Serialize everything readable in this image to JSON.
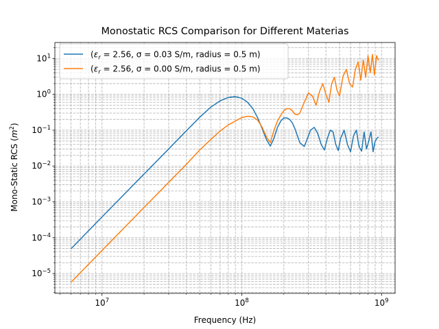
{
  "chart_data": {
    "type": "line",
    "title": "Monostatic RCS Comparison for Different Materias",
    "xlabel": "Frequency (Hz)",
    "ylabel": "Mono-Static RCS (m²)",
    "xscale": "log",
    "yscale": "log",
    "xlim": [
      4600000.0,
      1250000000.0
    ],
    "ylim": [
      2.8e-06,
      28
    ],
    "grid": "both (major and minor), dashed",
    "legend_position": "top-left",
    "x_tick_labels": [
      {
        "value": 10000000.0,
        "base": "10",
        "exp": "7"
      },
      {
        "value": 100000000.0,
        "base": "10",
        "exp": "8"
      },
      {
        "value": 1000000000.0,
        "base": "10",
        "exp": "9"
      }
    ],
    "y_tick_labels": [
      {
        "value": 1e-05,
        "base": "10",
        "exp": "−5"
      },
      {
        "value": 0.0001,
        "base": "10",
        "exp": "−4"
      },
      {
        "value": 0.001,
        "base": "10",
        "exp": "−3"
      },
      {
        "value": 0.01,
        "base": "10",
        "exp": "−2"
      },
      {
        "value": 0.1,
        "base": "10",
        "exp": "−1"
      },
      {
        "value": 1,
        "base": "10",
        "exp": "0"
      },
      {
        "value": 10,
        "base": "10",
        "exp": "1"
      }
    ],
    "series": [
      {
        "name": "(εr = 2.56, σ = 0.03 S/m, radius = 0.5 m)",
        "legend_eps": "ε",
        "legend_eps_sub": "r",
        "legend_rest": " = 2.56, σ = 0.03 S/m, radius = 0.5 m)",
        "color": "#1f77b4",
        "x": [
          6000000.0,
          10000000.0,
          20000000.0,
          30000000.0,
          40000000.0,
          50000000.0,
          60000000.0,
          70000000.0,
          80000000.0,
          90000000.0,
          100000000.0,
          110000000.0,
          120000000.0,
          130000000.0,
          140000000.0,
          150000000.0,
          160000000.0,
          170000000.0,
          180000000.0,
          190000000.0,
          200000000.0,
          210000000.0,
          220000000.0,
          230000000.0,
          240000000.0,
          250000000.0,
          260000000.0,
          280000000.0,
          300000000.0,
          310000000.0,
          330000000.0,
          350000000.0,
          370000000.0,
          390000000.0,
          410000000.0,
          430000000.0,
          450000000.0,
          470000000.0,
          490000000.0,
          510000000.0,
          540000000.0,
          570000000.0,
          600000000.0,
          630000000.0,
          660000000.0,
          690000000.0,
          720000000.0,
          750000000.0,
          780000000.0,
          810000000.0,
          840000000.0,
          870000000.0,
          900000000.0,
          930000000.0,
          950000000.0
        ],
        "values": [
          4.9e-05,
          0.00038,
          0.006,
          0.03,
          0.095,
          0.23,
          0.44,
          0.66,
          0.82,
          0.86,
          0.78,
          0.6,
          0.4,
          0.22,
          0.11,
          0.055,
          0.036,
          0.06,
          0.12,
          0.18,
          0.22,
          0.22,
          0.2,
          0.16,
          0.11,
          0.07,
          0.045,
          0.035,
          0.07,
          0.1,
          0.12,
          0.08,
          0.04,
          0.028,
          0.06,
          0.1,
          0.09,
          0.04,
          0.027,
          0.06,
          0.1,
          0.04,
          0.025,
          0.07,
          0.1,
          0.035,
          0.026,
          0.09,
          0.03,
          0.05,
          0.09,
          0.025,
          0.05,
          0.06,
          0.065
        ]
      },
      {
        "name": "(εr = 2.56, σ = 0.00 S/m, radius = 0.5 m)",
        "legend_eps": "ε",
        "legend_eps_sub": "r",
        "legend_rest": " = 2.56, σ = 0.00 S/m, radius = 0.5 m)",
        "color": "#ff7f0e",
        "x": [
          6000000.0,
          10000000.0,
          20000000.0,
          30000000.0,
          40000000.0,
          50000000.0,
          60000000.0,
          70000000.0,
          80000000.0,
          90000000.0,
          100000000.0,
          110000000.0,
          120000000.0,
          130000000.0,
          140000000.0,
          150000000.0,
          160000000.0,
          170000000.0,
          180000000.0,
          190000000.0,
          200000000.0,
          210000000.0,
          220000000.0,
          230000000.0,
          240000000.0,
          250000000.0,
          260000000.0,
          280000000.0,
          300000000.0,
          320000000.0,
          340000000.0,
          360000000.0,
          380000000.0,
          400000000.0,
          420000000.0,
          440000000.0,
          460000000.0,
          480000000.0,
          500000000.0,
          530000000.0,
          560000000.0,
          590000000.0,
          620000000.0,
          650000000.0,
          680000000.0,
          710000000.0,
          740000000.0,
          770000000.0,
          800000000.0,
          830000000.0,
          860000000.0,
          890000000.0,
          920000000.0,
          950000000.0
        ],
        "values": [
          5.7e-06,
          4.4e-05,
          0.0007,
          0.0035,
          0.011,
          0.028,
          0.055,
          0.095,
          0.14,
          0.18,
          0.225,
          0.245,
          0.235,
          0.19,
          0.12,
          0.065,
          0.045,
          0.1,
          0.18,
          0.26,
          0.35,
          0.4,
          0.4,
          0.35,
          0.28,
          0.27,
          0.3,
          0.6,
          1.1,
          0.9,
          0.5,
          1.2,
          2.0,
          1.0,
          0.6,
          2.0,
          3.0,
          1.3,
          0.9,
          3.2,
          5.0,
          2.0,
          1.6,
          5.0,
          8.0,
          2.5,
          9.0,
          3.0,
          12.0,
          4.0,
          13.0,
          3.5,
          12.0,
          9.0
        ]
      }
    ]
  }
}
